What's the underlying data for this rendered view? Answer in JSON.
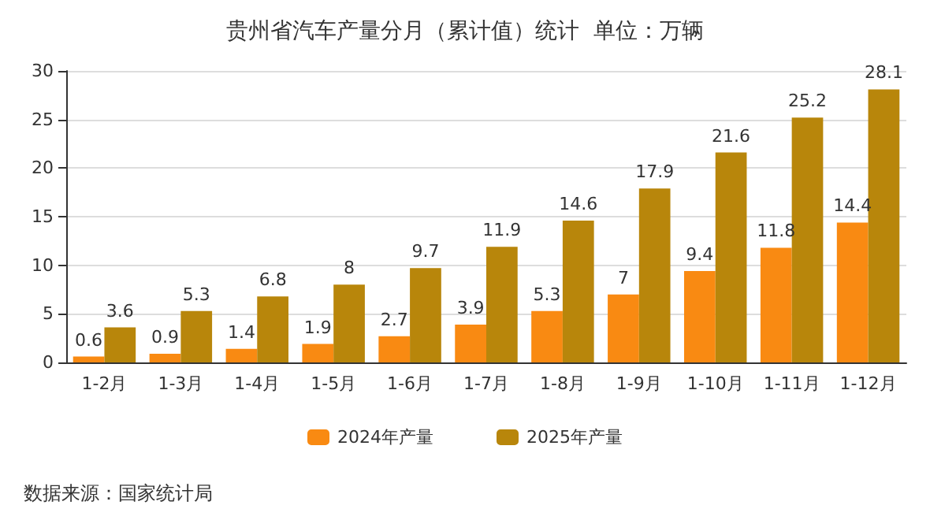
{
  "chart_data": {
    "type": "bar",
    "title": "贵州省汽车产量分月（累计值）统计  单位：万辆",
    "categories": [
      "1-2月",
      "1-3月",
      "1-4月",
      "1-5月",
      "1-6月",
      "1-7月",
      "1-8月",
      "1-9月",
      "1-10月",
      "1-11月",
      "1-12月"
    ],
    "series": [
      {
        "name": "2024年产量",
        "color": "#f98a12",
        "values": [
          0.6,
          0.9,
          1.4,
          1.9,
          2.7,
          3.9,
          5.3,
          7,
          9.4,
          11.8,
          14.4
        ]
      },
      {
        "name": "2025年产量",
        "color": "#b8860b",
        "values": [
          3.6,
          5.3,
          6.8,
          8,
          9.7,
          11.9,
          14.6,
          17.9,
          21.6,
          25.2,
          28.1
        ]
      }
    ],
    "ylim": [
      0,
      30
    ],
    "yticks": [
      0,
      5,
      10,
      15,
      20,
      25,
      30
    ],
    "grid": "y",
    "legend": "bottom",
    "data_labels": true,
    "annotations": [
      "数据来源：国家统计局"
    ]
  }
}
